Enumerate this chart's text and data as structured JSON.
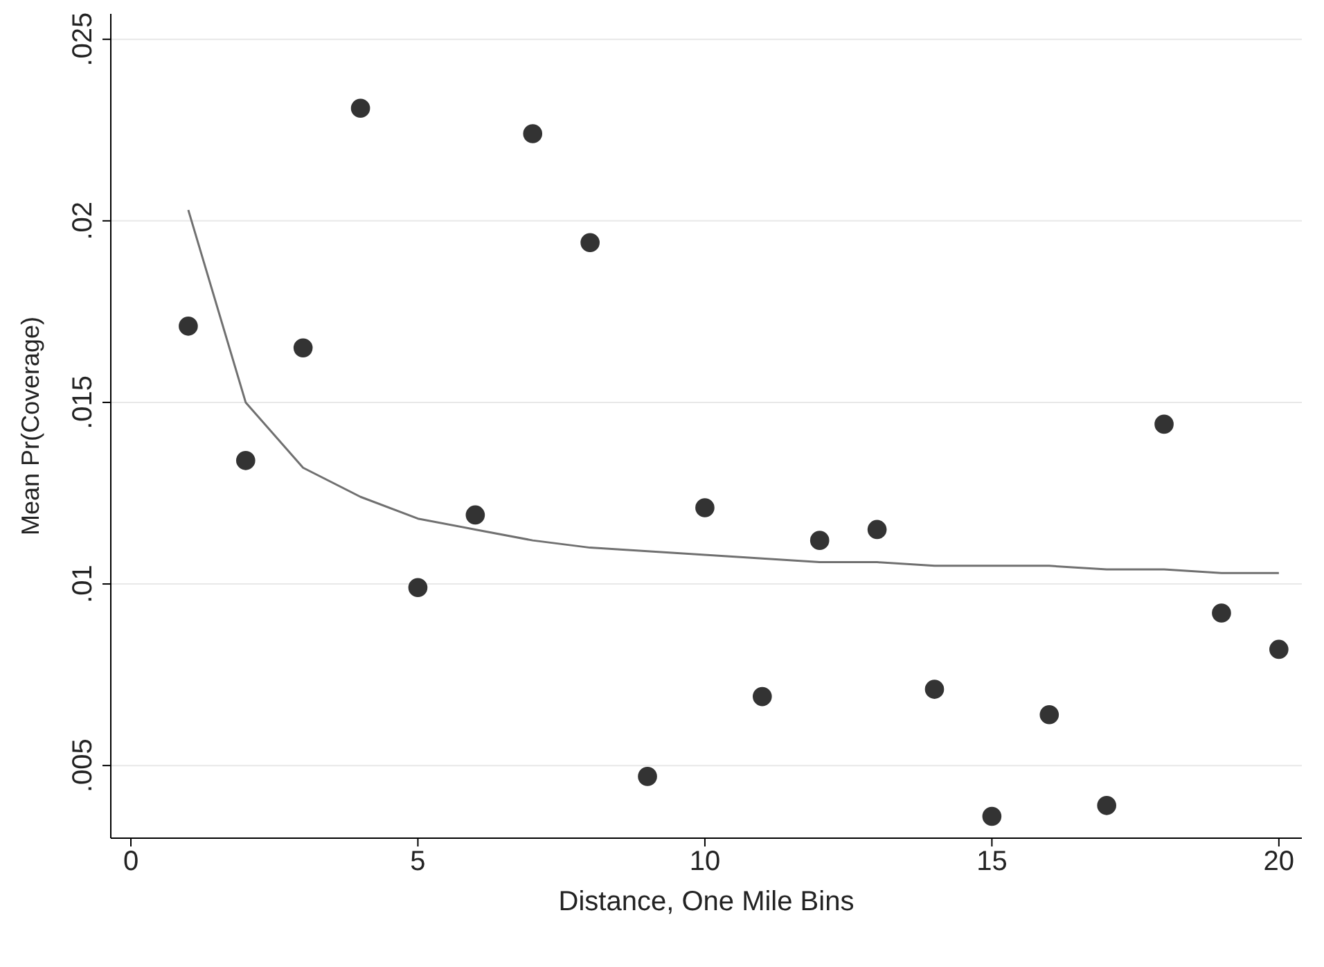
{
  "chart_data": {
    "type": "scatter",
    "xlabel": "Distance, One Mile Bins",
    "ylabel": "Mean Pr(Coverage)",
    "xlim": [
      -0.35,
      20.4
    ],
    "ylim": [
      0.003,
      0.0257
    ],
    "xticks": [
      0,
      5,
      10,
      15,
      20
    ],
    "yticks": [
      {
        "value": 0.005,
        "label": ".005"
      },
      {
        "value": 0.01,
        "label": ".01"
      },
      {
        "value": 0.015,
        "label": ".015"
      },
      {
        "value": 0.02,
        "label": ".02"
      },
      {
        "value": 0.025,
        "label": ".025"
      }
    ],
    "grid": "y",
    "series": [
      {
        "marker": "circle",
        "color": "#333333",
        "x": [
          1,
          2,
          3,
          4,
          5,
          6,
          7,
          8,
          9,
          10,
          11,
          12,
          13,
          14,
          15,
          16,
          17,
          18,
          19,
          20
        ],
        "values": [
          0.0171,
          0.0134,
          0.0165,
          0.0231,
          0.0099,
          0.0119,
          0.0224,
          0.0194,
          0.0047,
          0.0121,
          0.0069,
          0.0112,
          0.0115,
          0.0071,
          0.0036,
          0.0064,
          0.0039,
          0.0144,
          0.0092,
          0.0082
        ]
      },
      {
        "type": "line",
        "color": "#707070",
        "x": [
          1,
          2,
          3,
          4,
          5,
          6,
          7,
          8,
          9,
          10,
          11,
          12,
          13,
          14,
          15,
          16,
          17,
          18,
          19,
          20
        ],
        "values": [
          0.0203,
          0.015,
          0.0132,
          0.0124,
          0.0118,
          0.0115,
          0.0112,
          0.011,
          0.0109,
          0.0108,
          0.0107,
          0.0106,
          0.0106,
          0.0105,
          0.0105,
          0.0105,
          0.0104,
          0.0104,
          0.0103,
          0.0103
        ]
      }
    ]
  }
}
